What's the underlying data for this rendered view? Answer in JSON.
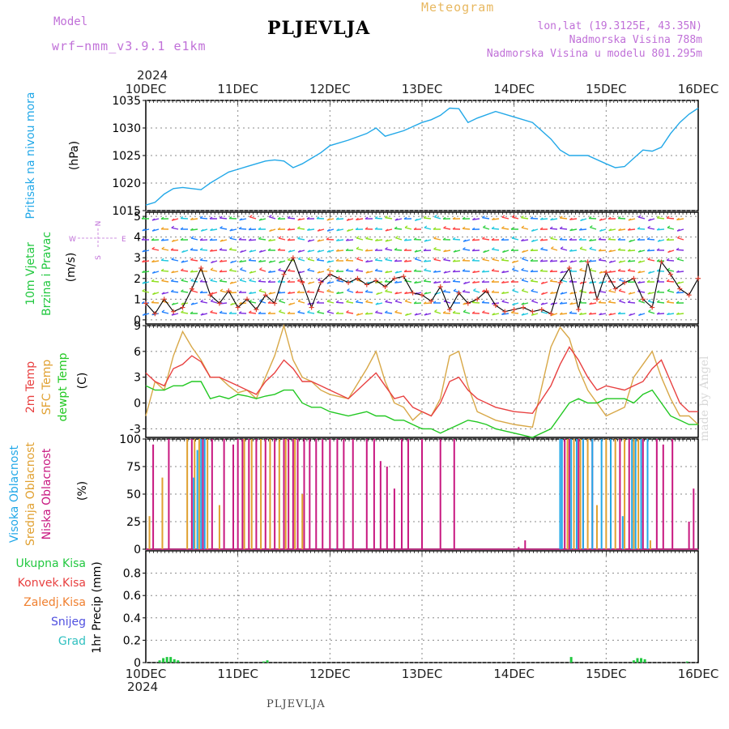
{
  "header": {
    "model_label": "Model",
    "model_name": "wrf−nmm_v3.9.1  e1km",
    "title": "PLJEVLJA",
    "meteogram": "Meteogram",
    "lonlat": "lon,lat (19.3125E, 43.35N)",
    "altitude": "Nadmorska Visina 788m",
    "model_altitude": "Nadmorska Visina u modelu 801.295m",
    "year": "2024"
  },
  "footer": {
    "year": "2024",
    "place": "PLJEVLJA",
    "made_by": "made by Angel"
  },
  "colors": {
    "pressure": "#22a8e8",
    "temp2m": "#e84040",
    "sfc_temp": "#d8a848",
    "dewpt": "#22c822",
    "cloud_high": "#22a8e8",
    "cloud_mid": "#e0a030",
    "cloud_low": "#c81880",
    "precip_total": "#22c840",
    "precip_conv": "#e84040",
    "precip_frozen": "#f08030",
    "precip_snow": "#5050e0",
    "precip_grad": "#30c0c0"
  },
  "chart_data": [
    {
      "type": "line",
      "id": "pressure",
      "ylabel_main": "Pritisak na nivou mora",
      "ylabel_unit": "(hPa)",
      "x_ticks": [
        "10DEC",
        "11DEC",
        "12DEC",
        "13DEC",
        "14DEC",
        "15DEC",
        "16DEC"
      ],
      "ylim": [
        1015,
        1035
      ],
      "y_ticks": [
        1015,
        1020,
        1025,
        1030,
        1035
      ],
      "series": [
        {
          "x": [
            0,
            0.1,
            0.2,
            0.3,
            0.4,
            0.5,
            0.6,
            0.7,
            0.8,
            0.9,
            1.0,
            1.1,
            1.2,
            1.3,
            1.4,
            1.5,
            1.6,
            1.7,
            1.8,
            1.9,
            2.0,
            2.2,
            2.4,
            2.5,
            2.6,
            2.8,
            3.0,
            3.1,
            3.2,
            3.3,
            3.4,
            3.5,
            3.6,
            3.8,
            4.0,
            4.2,
            4.4,
            4.5,
            4.6,
            4.8,
            5.0,
            5.1,
            5.2,
            5.3,
            5.4,
            5.5,
            5.6,
            5.7,
            5.8,
            5.9,
            6.0
          ],
          "y": [
            1016,
            1016.5,
            1018,
            1019,
            1019.2,
            1019,
            1018.8,
            1020,
            1021,
            1022,
            1022.5,
            1023,
            1023.5,
            1024,
            1024.2,
            1024,
            1022.8,
            1023.5,
            1024.5,
            1025.5,
            1026.8,
            1027.8,
            1029,
            1030,
            1028.5,
            1029.5,
            1031,
            1031.5,
            1032.3,
            1033.6,
            1033.5,
            1031,
            1031.8,
            1033,
            1032,
            1031,
            1028,
            1026,
            1025,
            1025,
            1023.5,
            1022.8,
            1023,
            1024.5,
            1026,
            1025.8,
            1026.5,
            1029,
            1031,
            1032.5,
            1033.6
          ]
        }
      ]
    },
    {
      "type": "line",
      "id": "wind",
      "ylabel_main": "10m Vjetar",
      "ylabel_sub": "Brzina i Pravac",
      "ylabel_unit": "(m/s)",
      "compass": {
        "w": "W",
        "e": "E",
        "n": "N",
        "s": "S"
      },
      "ylim": [
        -0.2,
        5.2
      ],
      "y_ticks": [
        0,
        1,
        2,
        3,
        4,
        5
      ],
      "series": [
        {
          "name": "Brzina",
          "x": [
            0,
            0.1,
            0.2,
            0.3,
            0.4,
            0.5,
            0.6,
            0.7,
            0.8,
            0.9,
            1.0,
            1.1,
            1.2,
            1.3,
            1.4,
            1.5,
            1.6,
            1.7,
            1.8,
            1.9,
            2.0,
            2.1,
            2.2,
            2.3,
            2.4,
            2.5,
            2.6,
            2.7,
            2.8,
            2.9,
            3.0,
            3.1,
            3.2,
            3.3,
            3.4,
            3.5,
            3.6,
            3.7,
            3.8,
            3.9,
            4.0,
            4.1,
            4.2,
            4.3,
            4.4,
            4.5,
            4.6,
            4.7,
            4.8,
            4.9,
            5.0,
            5.1,
            5.2,
            5.3,
            5.4,
            5.5,
            5.6,
            5.7,
            5.8,
            5.9,
            6.0
          ],
          "y": [
            0.8,
            0.3,
            1.0,
            0.4,
            0.6,
            1.5,
            2.5,
            1.2,
            0.8,
            1.4,
            0.6,
            1.0,
            0.5,
            1.2,
            0.8,
            2.2,
            3.0,
            1.8,
            0.6,
            1.8,
            2.2,
            2.0,
            1.8,
            2.0,
            1.7,
            1.9,
            1.6,
            2.0,
            2.1,
            1.3,
            1.2,
            0.9,
            1.6,
            0.5,
            1.3,
            0.8,
            1.0,
            1.4,
            0.7,
            0.4,
            0.5,
            0.6,
            0.4,
            0.5,
            0.3,
            1.8,
            2.5,
            0.5,
            2.8,
            1.0,
            2.3,
            1.5,
            1.8,
            2.0,
            1.0,
            0.6,
            2.8,
            2.2,
            1.5,
            1.2,
            2.0
          ]
        }
      ]
    },
    {
      "type": "line",
      "id": "temperature",
      "ylabel_main": "2m Temp",
      "ylabel_sub": "SFC Temp",
      "ylabel_sub2": "dewpt Temp",
      "ylabel_unit": "(C)",
      "ylim": [
        -4,
        9
      ],
      "y_ticks": [
        -3,
        0,
        3,
        6,
        9
      ],
      "series": [
        {
          "name": "2m Temp",
          "x": [
            0,
            0.1,
            0.2,
            0.3,
            0.4,
            0.5,
            0.6,
            0.7,
            0.8,
            0.9,
            1.0,
            1.1,
            1.2,
            1.3,
            1.4,
            1.5,
            1.6,
            1.7,
            1.8,
            1.9,
            2.0,
            2.2,
            2.4,
            2.5,
            2.6,
            2.7,
            2.8,
            2.9,
            3.0,
            3.1,
            3.2,
            3.3,
            3.4,
            3.5,
            3.6,
            3.7,
            3.8,
            4.0,
            4.2,
            4.4,
            4.5,
            4.6,
            4.7,
            4.8,
            4.9,
            5.0,
            5.2,
            5.3,
            5.4,
            5.5,
            5.6,
            5.7,
            5.8,
            5.9,
            6.0
          ],
          "y": [
            3.5,
            2.5,
            2.0,
            4.0,
            4.5,
            5.5,
            4.8,
            3.0,
            3.0,
            2.5,
            2.0,
            1.5,
            1.0,
            2.5,
            3.5,
            5.0,
            4.0,
            2.5,
            2.5,
            2.0,
            1.5,
            0.5,
            2.5,
            3.5,
            2.0,
            0.5,
            0.8,
            -0.5,
            -1.0,
            -1.5,
            0.0,
            2.5,
            3.0,
            1.5,
            0.5,
            0.0,
            -0.5,
            -1.0,
            -1.2,
            2.0,
            4.5,
            6.5,
            5.0,
            3.0,
            1.5,
            2.0,
            1.5,
            2.0,
            2.5,
            4.0,
            5.0,
            2.5,
            0.0,
            -1.0,
            -1.0
          ]
        },
        {
          "name": "SFC Temp",
          "x": [
            0,
            0.1,
            0.2,
            0.3,
            0.4,
            0.5,
            0.6,
            0.7,
            0.8,
            0.9,
            1.0,
            1.1,
            1.2,
            1.3,
            1.4,
            1.5,
            1.6,
            1.7,
            1.8,
            1.9,
            2.0,
            2.2,
            2.4,
            2.5,
            2.6,
            2.7,
            2.8,
            2.9,
            3.0,
            3.1,
            3.2,
            3.3,
            3.4,
            3.5,
            3.6,
            3.7,
            3.8,
            4.0,
            4.2,
            4.4,
            4.5,
            4.6,
            4.7,
            4.8,
            4.9,
            5.0,
            5.2,
            5.3,
            5.4,
            5.5,
            5.6,
            5.7,
            5.8,
            5.9,
            6.0
          ],
          "y": [
            -1.5,
            2.5,
            1.5,
            5.5,
            8.3,
            6.5,
            5.0,
            3.0,
            3.0,
            2.0,
            1.2,
            1.5,
            0.5,
            3.0,
            5.5,
            9.0,
            5.0,
            3.0,
            2.5,
            1.5,
            1.0,
            0.5,
            4.0,
            6.0,
            2.5,
            0.0,
            -0.5,
            -2.0,
            -1.0,
            -1.5,
            0.5,
            5.5,
            6.0,
            2.0,
            -1.0,
            -1.5,
            -2.0,
            -2.5,
            -2.8,
            6.5,
            8.8,
            7.5,
            4.0,
            1.5,
            0.0,
            -1.5,
            -0.5,
            3.0,
            4.5,
            6.0,
            3.0,
            0.5,
            -1.5,
            -1.5,
            -2.5
          ]
        },
        {
          "name": "dewpt Temp",
          "x": [
            0,
            0.1,
            0.2,
            0.3,
            0.4,
            0.5,
            0.6,
            0.7,
            0.8,
            0.9,
            1.0,
            1.1,
            1.2,
            1.3,
            1.4,
            1.5,
            1.6,
            1.7,
            1.8,
            1.9,
            2.0,
            2.2,
            2.4,
            2.5,
            2.6,
            2.7,
            2.8,
            2.9,
            3.0,
            3.1,
            3.2,
            3.3,
            3.4,
            3.5,
            3.6,
            3.7,
            3.8,
            4.0,
            4.2,
            4.4,
            4.5,
            4.6,
            4.7,
            4.8,
            4.9,
            5.0,
            5.2,
            5.3,
            5.4,
            5.5,
            5.6,
            5.7,
            5.8,
            5.9,
            6.0
          ],
          "y": [
            2.0,
            1.5,
            1.5,
            2.0,
            2.0,
            2.5,
            2.5,
            0.5,
            0.8,
            0.5,
            1.0,
            0.8,
            0.5,
            0.8,
            1.0,
            1.5,
            1.5,
            0.0,
            -0.5,
            -0.5,
            -1.0,
            -1.5,
            -1.0,
            -1.5,
            -1.5,
            -2.0,
            -2.0,
            -2.5,
            -3.0,
            -3.0,
            -3.5,
            -3.0,
            -2.5,
            -2.0,
            -2.2,
            -2.5,
            -3.0,
            -3.5,
            -4.0,
            -3.0,
            -1.5,
            0.0,
            0.5,
            0.0,
            0.0,
            0.5,
            0.5,
            0.0,
            1.0,
            1.5,
            0.0,
            -1.5,
            -2.0,
            -2.5,
            -2.5
          ]
        }
      ]
    },
    {
      "type": "bar",
      "id": "cloud",
      "ylabel_main": "Visoka Oblacnost",
      "ylabel_sub": "Srednja Oblacnost",
      "ylabel_sub2": "Niska Oblacnost",
      "ylabel_unit": "(%)",
      "ylim": [
        0,
        100
      ],
      "y_ticks": [
        0,
        25,
        50,
        75,
        100
      ],
      "series": [
        {
          "name": "Niska Oblacnost",
          "x": [
            0.08,
            0.25,
            0.5,
            0.62,
            0.72,
            0.85,
            0.95,
            1.0,
            1.05,
            1.12,
            1.2,
            1.3,
            1.4,
            1.5,
            1.55,
            1.6,
            1.65,
            1.72,
            1.78,
            1.85,
            1.92,
            2.0,
            2.08,
            2.15,
            2.25,
            2.4,
            2.48,
            2.55,
            2.62,
            2.7,
            2.78,
            2.85,
            3.0,
            3.2,
            3.35,
            4.05,
            4.12,
            4.55,
            4.6,
            4.7,
            4.75,
            4.85,
            5.05,
            5.15,
            5.25,
            5.4,
            5.55,
            5.62,
            5.72,
            5.9,
            5.95
          ],
          "y": [
            95,
            100,
            100,
            100,
            100,
            100,
            95,
            100,
            100,
            100,
            100,
            100,
            100,
            100,
            100,
            100,
            100,
            100,
            100,
            100,
            100,
            100,
            100,
            100,
            100,
            100,
            100,
            80,
            75,
            55,
            100,
            100,
            100,
            100,
            100,
            2,
            8,
            100,
            100,
            100,
            100,
            100,
            100,
            100,
            100,
            100,
            100,
            95,
            100,
            25,
            55
          ]
        },
        {
          "name": "Srednja Oblacnost",
          "x": [
            0.04,
            0.18,
            0.45,
            0.53,
            0.58,
            0.67,
            0.8,
            1.07,
            1.15,
            1.25,
            1.35,
            1.45,
            1.52,
            1.62,
            1.7,
            4.58,
            4.65,
            4.72,
            4.8,
            4.9,
            5.0,
            5.1,
            5.2,
            5.3,
            5.35,
            5.48
          ],
          "y": [
            30,
            65,
            100,
            100,
            100,
            100,
            40,
            100,
            100,
            100,
            100,
            100,
            100,
            100,
            50,
            100,
            100,
            100,
            100,
            40,
            100,
            100,
            100,
            100,
            100,
            8
          ]
        },
        {
          "name": "Visoka Oblacnost",
          "x": [
            0.52,
            0.56,
            0.6,
            0.64,
            2.05,
            4.5,
            4.52,
            4.62,
            4.68,
            4.75,
            4.85,
            4.95,
            5.05,
            5.18,
            5.28,
            5.32,
            5.38,
            5.45
          ],
          "y": [
            65,
            90,
            100,
            100,
            0.5,
            100,
            100,
            100,
            100,
            100,
            100,
            100,
            100,
            30,
            100,
            100,
            100,
            100
          ]
        }
      ]
    },
    {
      "type": "bar",
      "id": "precip",
      "legend": [
        "Ukupna Kisa",
        "Konvek.Kisa",
        "Zaledj.Kisa",
        "Snijeg",
        "Grad"
      ],
      "ylabel_unit": "1hr Precip (mm)",
      "x_ticks": [
        "10DEC",
        "11DEC",
        "12DEC",
        "13DEC",
        "14DEC",
        "15DEC",
        "16DEC"
      ],
      "ylim": [
        0,
        1.0
      ],
      "y_ticks": [
        0,
        0.2,
        0.4,
        0.6,
        0.8
      ],
      "series": [
        {
          "name": "Ukupna Kisa",
          "x": [
            0.15,
            0.19,
            0.23,
            0.27,
            0.31,
            0.35,
            1.28,
            1.32,
            4.62,
            5.3,
            5.34,
            5.38,
            5.42,
            5.88
          ],
          "y": [
            0.02,
            0.04,
            0.05,
            0.05,
            0.03,
            0.02,
            0.01,
            0.02,
            0.05,
            0.02,
            0.04,
            0.04,
            0.03,
            0.01
          ]
        }
      ]
    }
  ]
}
